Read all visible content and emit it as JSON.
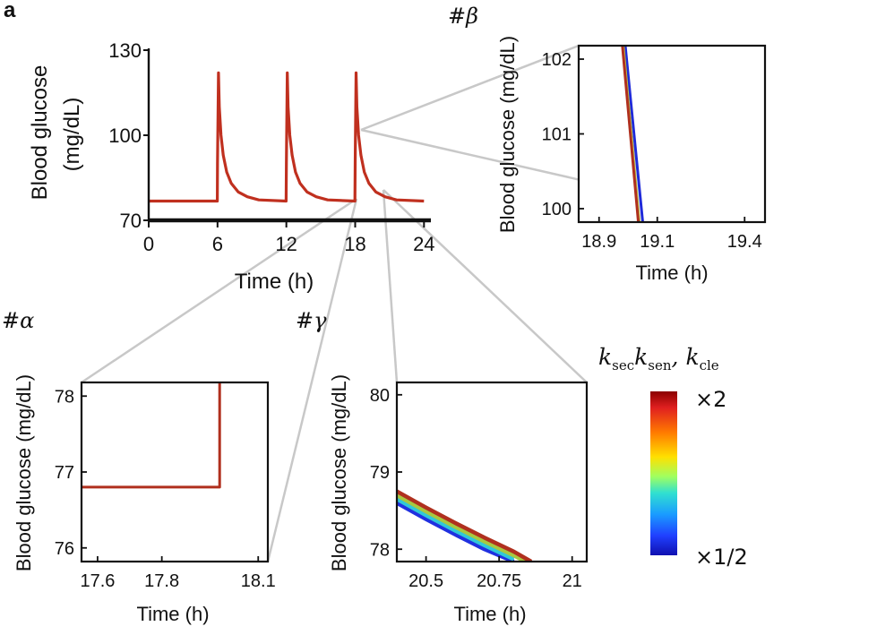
{
  "panel_label": "a",
  "colorbar": {
    "title_parts": [
      {
        "k": "k",
        "sub": "sec"
      },
      {
        "k": "k",
        "sub": "sen"
      },
      {
        "sep": ", "
      },
      {
        "k": "k",
        "sub": "cle"
      }
    ],
    "top_label": "×2",
    "bottom_label": "×1/2"
  },
  "chart_data": [
    {
      "id": "main",
      "type": "line",
      "title": "",
      "xlabel": "Time (h)",
      "ylabel": [
        "Blood glucose",
        "(mg/dL)"
      ],
      "xlim": [
        0,
        24.6
      ],
      "ylim": [
        70,
        130
      ],
      "xticks": [
        0,
        6,
        12,
        18,
        24
      ],
      "xtick_labels": [
        "0",
        "6",
        "12",
        "18",
        "24"
      ],
      "yticks": [
        70,
        100,
        130
      ],
      "ytick_labels": [
        "70",
        "100",
        "130"
      ],
      "frame": "l-shape",
      "series": [
        {
          "color": "#c0301f",
          "x": [
            0,
            5.98,
            6.0,
            6.08,
            6.15,
            6.3,
            6.5,
            6.8,
            7.2,
            7.8,
            8.6,
            9.6,
            11.98,
            12.0,
            12.08,
            12.15,
            12.3,
            12.5,
            12.8,
            13.2,
            13.8,
            14.6,
            15.6,
            17.98,
            18.0,
            18.08,
            18.15,
            18.3,
            18.5,
            18.8,
            19.2,
            19.8,
            20.6,
            21.6,
            24.0
          ],
          "y": [
            76.8,
            76.8,
            90,
            122,
            110,
            100,
            93,
            87,
            83,
            80,
            78.3,
            77.2,
            76.8,
            90,
            122,
            110,
            100,
            93,
            87,
            83,
            80,
            78.3,
            77.2,
            76.8,
            90,
            122,
            110,
            100,
            93,
            87,
            83,
            80,
            78.3,
            77.2,
            76.8
          ]
        }
      ]
    },
    {
      "id": "beta",
      "title": "#β",
      "type": "line",
      "xlabel": "Time (h)",
      "ylabel": [
        "Blood glucose (mg/dL)"
      ],
      "xlim": [
        18.83,
        19.47
      ],
      "ylim": [
        99.82,
        102.18
      ],
      "xticks": [
        18.9,
        19.1,
        19.4
      ],
      "xtick_labels": [
        "18.9",
        "19.1",
        "19.4"
      ],
      "yticks": [
        100,
        101,
        102
      ],
      "ytick_labels": [
        "100",
        "101",
        "102"
      ],
      "frame": "box",
      "series": [
        {
          "color": "#1f2ad9",
          "x": [
            18.99,
            19.05
          ],
          "y": [
            102.18,
            99.82
          ]
        },
        {
          "color": "#b8c04a",
          "x": [
            18.983,
            19.038
          ],
          "y": [
            102.18,
            99.82
          ]
        },
        {
          "color": "#b0301e",
          "x": [
            18.98,
            19.035
          ],
          "y": [
            102.18,
            99.82
          ]
        }
      ]
    },
    {
      "id": "alpha",
      "title": "#α",
      "type": "line",
      "xlabel": "Time (h)",
      "ylabel": [
        "Blood glucose (mg/dL)"
      ],
      "xlim": [
        17.55,
        18.13
      ],
      "ylim": [
        75.82,
        78.18
      ],
      "xticks": [
        17.6,
        17.8,
        18.1
      ],
      "xtick_labels": [
        "17.6",
        "17.8",
        "18.1"
      ],
      "yticks": [
        76,
        77,
        78
      ],
      "ytick_labels": [
        "76",
        "77",
        "78"
      ],
      "frame": "box",
      "series": [
        {
          "color": "#b0301e",
          "x": [
            17.55,
            17.98,
            17.98
          ],
          "y": [
            76.8,
            76.8,
            78.18
          ]
        }
      ]
    },
    {
      "id": "gamma",
      "title": "#γ",
      "type": "line",
      "xlabel": "Time (h)",
      "ylabel": [
        "Blood glucose (mg/dL)"
      ],
      "xlim": [
        20.4,
        21.05
      ],
      "ylim": [
        77.84,
        80.16
      ],
      "xticks": [
        20.5,
        20.75,
        21
      ],
      "xtick_labels": [
        "20.5",
        "20.75",
        "21"
      ],
      "yticks": [
        78,
        79,
        80
      ],
      "ytick_labels": [
        "78",
        "79",
        "80"
      ],
      "frame": "box",
      "series": [
        {
          "color": "#2030e0",
          "x": [
            20.4,
            20.5,
            20.6,
            20.7,
            20.8
          ],
          "y": [
            78.6,
            78.39,
            78.19,
            78.0,
            77.84
          ]
        },
        {
          "color": "#30c8d8",
          "x": [
            20.4,
            20.5,
            20.6,
            20.7,
            20.8
          ],
          "y": [
            78.65,
            78.44,
            78.24,
            78.05,
            77.87
          ]
        },
        {
          "color": "#a8c840",
          "x": [
            20.4,
            20.5,
            20.6,
            20.7,
            20.8,
            20.84
          ],
          "y": [
            78.7,
            78.49,
            78.29,
            78.1,
            77.92,
            77.84
          ]
        },
        {
          "color": "#b0301e",
          "x": [
            20.4,
            20.5,
            20.6,
            20.7,
            20.8,
            20.86
          ],
          "y": [
            78.75,
            78.54,
            78.34,
            78.15,
            77.97,
            77.84
          ]
        }
      ]
    }
  ]
}
